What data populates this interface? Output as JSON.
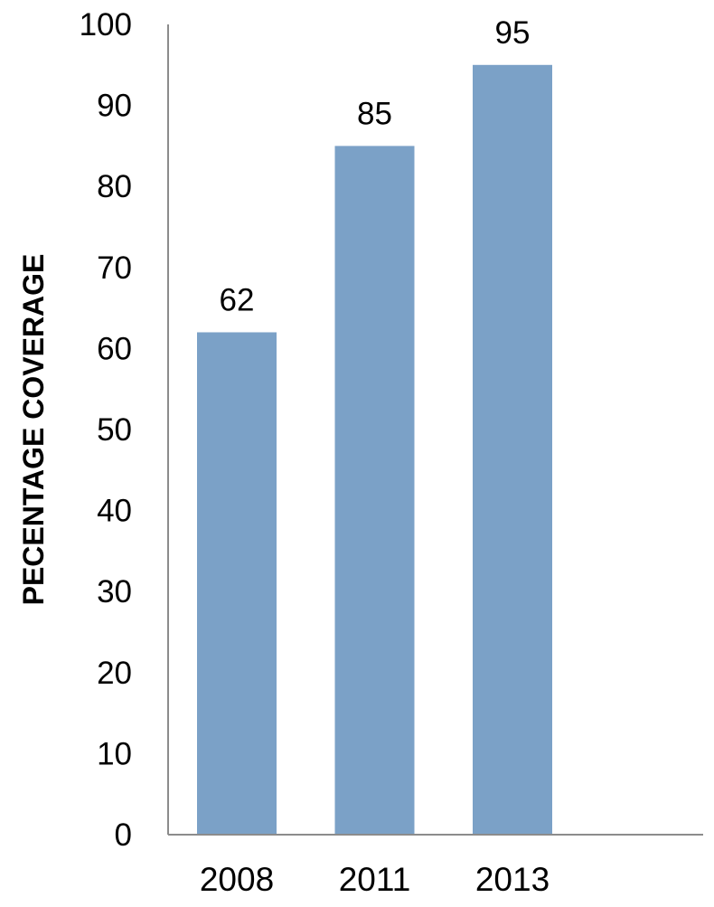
{
  "chart_data": {
    "type": "bar",
    "categories": [
      "2008",
      "2011",
      "2013"
    ],
    "values": [
      62,
      85,
      95
    ],
    "data_labels": [
      "62",
      "85",
      "95"
    ],
    "title": "",
    "xlabel": "",
    "ylabel": "PECENTAGE COVERAGE",
    "ylim": [
      0,
      100
    ],
    "y_ticks": [
      "0",
      "10",
      "20",
      "30",
      "40",
      "50",
      "60",
      "70",
      "80",
      "90",
      "100"
    ],
    "grid": false,
    "legend": "none",
    "bar_color": "#7BA1C7",
    "axis_color": "#8C8C8C"
  }
}
